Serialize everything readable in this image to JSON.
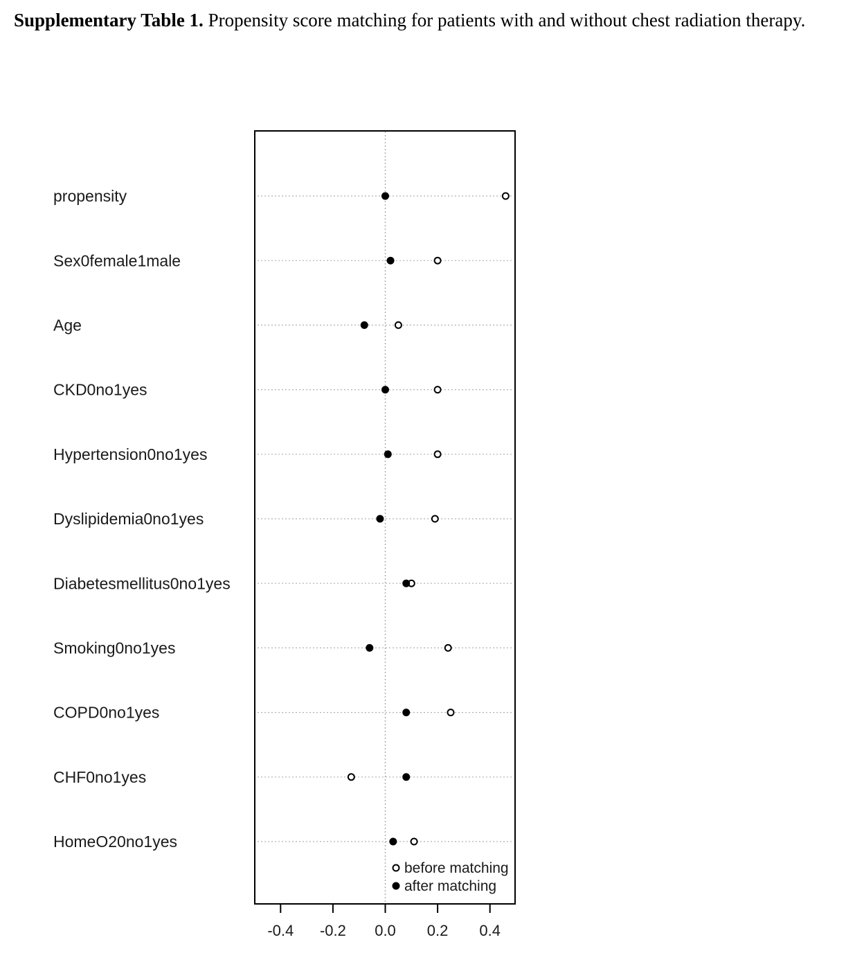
{
  "caption": {
    "bold": "Supplementary Table 1.",
    "text": " Propensity score matching for patients with and without chest radiation therapy."
  },
  "chart_data": {
    "type": "scatter",
    "title": "",
    "xlabel": "",
    "ylabel": "",
    "xlim": [
      -0.5,
      0.5
    ],
    "xticks": [
      -0.4,
      -0.2,
      0.0,
      0.2,
      0.4
    ],
    "xtick_labels": [
      "-0.4",
      "-0.2",
      "0.0",
      "0.2",
      "0.4"
    ],
    "grid": "dotted",
    "legend_position": "bottom-right",
    "categories": [
      "propensity",
      "Sex0female1male",
      "Age",
      "CKD0no1yes",
      "Hypertension0no1yes",
      "Dyslipidemia0no1yes",
      "Diabetesmellitus0no1yes",
      "Smoking0no1yes",
      "COPD0no1yes",
      "CHF0no1yes",
      "HomeO20no1yes"
    ],
    "series": [
      {
        "name": "before matching",
        "marker": "open-circle",
        "values": [
          0.46,
          0.2,
          0.05,
          0.2,
          0.2,
          0.19,
          0.1,
          0.24,
          0.25,
          -0.13,
          0.11
        ]
      },
      {
        "name": "after matching",
        "marker": "filled-circle",
        "values": [
          0.0,
          0.02,
          -0.08,
          0.0,
          0.01,
          -0.02,
          0.08,
          -0.06,
          0.08,
          0.08,
          0.03
        ]
      }
    ]
  },
  "colors": {
    "axis": "#000000",
    "grid": "#b0b0b0",
    "marker": "#000000"
  }
}
